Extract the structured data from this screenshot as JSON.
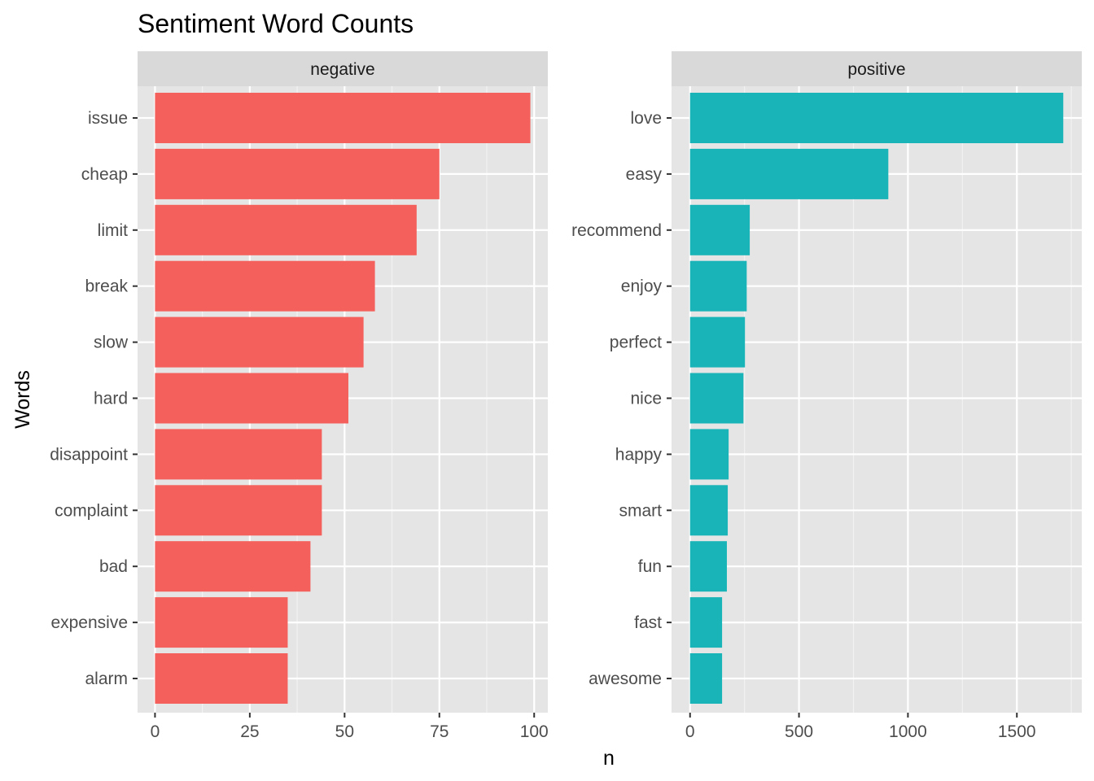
{
  "chart_data": {
    "type": "bar",
    "orientation": "horizontal",
    "title": "Sentiment Word Counts",
    "xlabel": "n",
    "ylabel": "Words",
    "grid": true,
    "panel_background": "#e5e5e5",
    "strip_background": "#d9d9d9",
    "panels": [
      {
        "facet": "negative",
        "color": "#f4605b",
        "xlim": [
          -4.6,
          103.6
        ],
        "xticks": [
          0,
          25,
          50,
          75,
          100
        ],
        "categories": [
          "issue",
          "cheap",
          "limit",
          "break",
          "slow",
          "hard",
          "disappoint",
          "complaint",
          "bad",
          "expensive",
          "alarm"
        ],
        "values": [
          99,
          75,
          69,
          58,
          55,
          51,
          44,
          44,
          41,
          35,
          35
        ]
      },
      {
        "facet": "positive",
        "color": "#19b4b8",
        "xlim": [
          -85,
          1798
        ],
        "xticks": [
          0,
          500,
          1000,
          1500
        ],
        "categories": [
          "love",
          "easy",
          "recommend",
          "enjoy",
          "perfect",
          "nice",
          "happy",
          "smart",
          "fun",
          "fast",
          "awesome"
        ],
        "values": [
          1713,
          910,
          274,
          260,
          252,
          245,
          177,
          173,
          169,
          147,
          147
        ]
      }
    ]
  }
}
